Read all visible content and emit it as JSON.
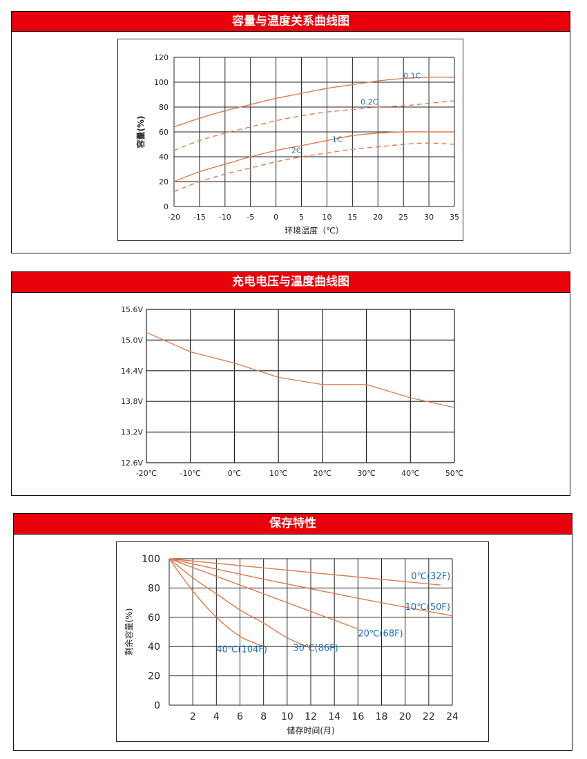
{
  "panels": {
    "capacity": {
      "title": "容量与温度关系曲线图"
    },
    "voltage": {
      "title": "充电电压与温度曲线图"
    },
    "storage": {
      "title": "保存特性"
    }
  },
  "colors": {
    "header_red": "#e8000a",
    "curve": "#e07a4a",
    "label_blue": "#1f6fb5",
    "grid": "#222222"
  },
  "chart_data": [
    {
      "id": "capacity",
      "type": "line",
      "xlabel": "环境温度（℃）",
      "ylabel": "容量(%)",
      "xlim": [
        -20,
        35
      ],
      "ylim": [
        0,
        120
      ],
      "xticks": [
        -20,
        -15,
        -10,
        -5,
        0,
        5,
        10,
        15,
        20,
        25,
        30,
        35
      ],
      "xtick_labels": [
        "-20",
        "-15",
        "-10",
        "-5",
        "0",
        "5",
        "10",
        "15",
        "20",
        "25",
        "30",
        "35"
      ],
      "yticks": [
        0,
        20,
        40,
        60,
        80,
        100,
        120
      ],
      "ytick_labels": [
        "0",
        "20",
        "40",
        "60",
        "80",
        "100",
        "120"
      ],
      "grid": true,
      "series": [
        {
          "name": "0.1C",
          "style": "solid",
          "x": [
            -20,
            -15,
            -10,
            -5,
            0,
            5,
            10,
            15,
            20,
            25,
            30,
            35
          ],
          "y": [
            64,
            71,
            77,
            82,
            87,
            91,
            95,
            98,
            101,
            103,
            104,
            104
          ]
        },
        {
          "name": "0.2C",
          "style": "dashed",
          "x": [
            -20,
            -15,
            -10,
            -5,
            0,
            5,
            10,
            15,
            20,
            25,
            30,
            35
          ],
          "y": [
            45,
            53,
            59,
            64,
            69,
            73,
            76,
            78,
            80,
            81,
            83,
            85
          ]
        },
        {
          "name": "1C",
          "style": "solid",
          "x": [
            -20,
            -15,
            -10,
            -5,
            0,
            5,
            10,
            15,
            20,
            25,
            30,
            35
          ],
          "y": [
            20,
            28,
            34,
            40,
            45,
            49,
            53,
            57,
            59,
            60,
            60,
            60
          ]
        },
        {
          "name": "2C",
          "style": "dashed",
          "x": [
            -20,
            -15,
            -10,
            -5,
            0,
            5,
            10,
            15,
            20,
            25,
            30,
            35
          ],
          "y": [
            12,
            20,
            26,
            31,
            36,
            40,
            43,
            46,
            48,
            50,
            51,
            50
          ]
        }
      ]
    },
    {
      "id": "voltage",
      "type": "line",
      "xlim": [
        -20,
        50
      ],
      "ylim": [
        12.6,
        15.6
      ],
      "xticks": [
        -20,
        -10,
        0,
        10,
        20,
        30,
        40,
        50
      ],
      "xtick_labels": [
        "-20℃",
        "-10℃",
        "0℃",
        "10℃",
        "20℃",
        "30℃",
        "40℃",
        "50℃"
      ],
      "yticks": [
        12.6,
        13.2,
        13.8,
        14.4,
        15.0,
        15.6
      ],
      "ytick_labels": [
        "12.6V",
        "13.2V",
        "13.8V",
        "14.4V",
        "15.0V",
        "15.6V"
      ],
      "grid": true,
      "series": [
        {
          "style": "solid",
          "x": [
            -20,
            -10,
            0,
            10,
            20,
            30,
            40,
            50
          ],
          "y": [
            15.15,
            14.77,
            14.55,
            14.27,
            14.13,
            14.13,
            13.87,
            13.68
          ]
        }
      ]
    },
    {
      "id": "storage",
      "type": "line",
      "xlabel": "储存时间(月)",
      "ylabel": "剩余容量(%)",
      "xlim": [
        0,
        24
      ],
      "ylim": [
        0,
        100
      ],
      "xticks": [
        2,
        4,
        6,
        8,
        10,
        12,
        14,
        16,
        18,
        20,
        22,
        24
      ],
      "xtick_labels": [
        "2",
        "4",
        "6",
        "8",
        "10",
        "12",
        "14",
        "16",
        "18",
        "20",
        "22",
        "24"
      ],
      "yticks": [
        0,
        20,
        40,
        60,
        80,
        100
      ],
      "ytick_labels": [
        "0",
        "20",
        "40",
        "60",
        "80",
        "100"
      ],
      "grid": true,
      "series": [
        {
          "name": "0℃(32F)",
          "style": "solid",
          "x": [
            0,
            23
          ],
          "y": [
            100,
            82
          ]
        },
        {
          "name": "10℃(50F)",
          "style": "solid",
          "x": [
            0,
            8,
            16,
            24
          ],
          "y": [
            100,
            86,
            73,
            61
          ]
        },
        {
          "name": "20℃(68F)",
          "style": "solid",
          "x": [
            0,
            4,
            8,
            12,
            16
          ],
          "y": [
            100,
            88,
            76,
            64,
            52
          ]
        },
        {
          "name": "30℃(86F)",
          "style": "solid",
          "x": [
            0,
            2,
            4,
            6,
            8,
            10,
            12
          ],
          "y": [
            100,
            87,
            76,
            65,
            56,
            46,
            39
          ]
        },
        {
          "name": "40℃(104F)",
          "style": "solid",
          "x": [
            0,
            2,
            4,
            6,
            8
          ],
          "y": [
            100,
            78,
            60,
            47,
            40
          ]
        }
      ]
    }
  ]
}
